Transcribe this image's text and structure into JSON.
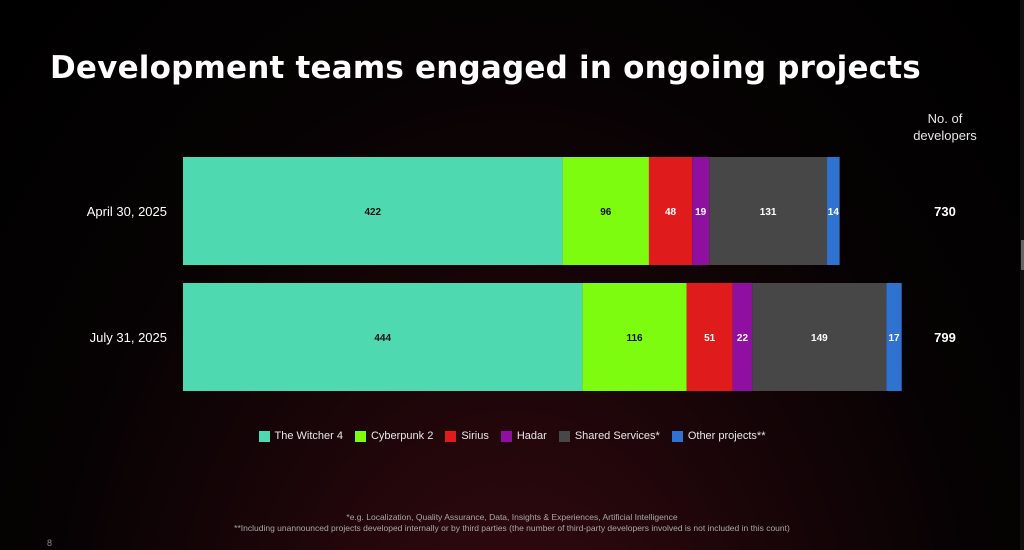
{
  "title": "Development teams engaged in ongoing projects",
  "total_header": [
    "No. of",
    "developers"
  ],
  "chart_data": {
    "type": "bar",
    "orientation": "horizontal",
    "stacked": true,
    "categories": [
      "April 30, 2025",
      "July 31, 2025"
    ],
    "series": [
      {
        "name": "The Witcher 4",
        "color": "#4fd9b0",
        "values": [
          422,
          444
        ]
      },
      {
        "name": "Cyberpunk 2",
        "color": "#7dfc10",
        "values": [
          96,
          116
        ]
      },
      {
        "name": "Sirius",
        "color": "#e01b1b",
        "values": [
          48,
          51
        ]
      },
      {
        "name": "Hadar",
        "color": "#8f0fa0",
        "values": [
          19,
          22
        ]
      },
      {
        "name": "Shared Services*",
        "color": "#474747",
        "values": [
          131,
          149
        ]
      },
      {
        "name": "Other projects**",
        "color": "#2f72cf",
        "values": [
          14,
          17
        ]
      }
    ],
    "totals": [
      730,
      799
    ],
    "label_colors": [
      "#111111",
      "#111111",
      "#ffffff",
      "#ffffff",
      "#ffffff",
      "#ffffff"
    ],
    "legend_position": "bottom",
    "grid": false
  },
  "footnotes": [
    "*e.g. Localization, Quality Assurance, Data, Insights & Experiences, Artificial Intelligence",
    "**Including unannounced projects developed internally or by third parties (the number of third-party developers involved is not included in this count)"
  ],
  "page_number": "8"
}
